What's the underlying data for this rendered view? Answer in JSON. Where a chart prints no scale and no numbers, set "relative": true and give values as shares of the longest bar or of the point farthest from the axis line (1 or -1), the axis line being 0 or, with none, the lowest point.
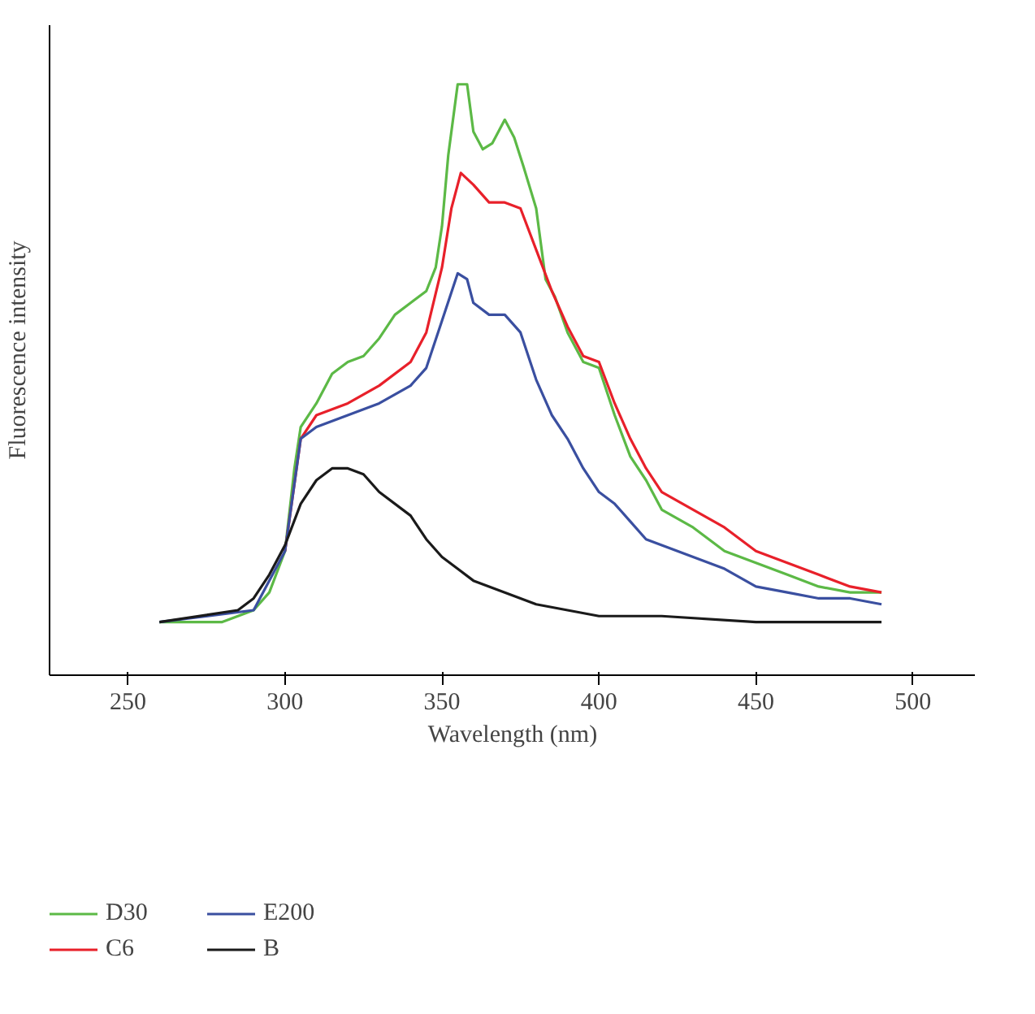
{
  "chart_data": {
    "type": "line",
    "relative": true,
    "xlabel": "Wavelength (nm)",
    "ylabel": "Fluorescence intensity",
    "xlim": [
      225,
      520
    ],
    "xticks": [
      250,
      300,
      350,
      400,
      450,
      500
    ],
    "grid": false,
    "legend": "bottom",
    "series": [
      {
        "name": "D30",
        "color": "#5cb946",
        "x": [
          260,
          280,
          290,
          295,
          300,
          303,
          305,
          310,
          315,
          320,
          325,
          330,
          335,
          340,
          345,
          348,
          350,
          352,
          355,
          358,
          360,
          363,
          366,
          370,
          373,
          376,
          380,
          383,
          386,
          390,
          395,
          400,
          405,
          410,
          415,
          420,
          430,
          440,
          450,
          460,
          470,
          480,
          490
        ],
        "values": [
          0.09,
          0.09,
          0.11,
          0.14,
          0.21,
          0.35,
          0.42,
          0.46,
          0.51,
          0.53,
          0.54,
          0.57,
          0.61,
          0.63,
          0.65,
          0.69,
          0.76,
          0.88,
          1.0,
          1.0,
          0.92,
          0.89,
          0.9,
          0.94,
          0.91,
          0.86,
          0.79,
          0.67,
          0.64,
          0.58,
          0.53,
          0.52,
          0.44,
          0.37,
          0.33,
          0.28,
          0.25,
          0.21,
          0.19,
          0.17,
          0.15,
          0.14,
          0.14
        ]
      },
      {
        "name": "C6",
        "color": "#e8202a",
        "x": [
          300,
          305,
          310,
          320,
          330,
          340,
          345,
          350,
          353,
          356,
          360,
          365,
          370,
          375,
          380,
          385,
          390,
          395,
          400,
          405,
          410,
          415,
          420,
          430,
          440,
          450,
          460,
          470,
          480,
          490
        ],
        "values": [
          0.21,
          0.4,
          0.44,
          0.46,
          0.49,
          0.53,
          0.58,
          0.69,
          0.79,
          0.85,
          0.83,
          0.8,
          0.8,
          0.79,
          0.72,
          0.65,
          0.59,
          0.54,
          0.53,
          0.46,
          0.4,
          0.35,
          0.31,
          0.28,
          0.25,
          0.21,
          0.19,
          0.17,
          0.15,
          0.14
        ]
      },
      {
        "name": "E200",
        "color": "#3a4fa0",
        "x": [
          260,
          290,
          300,
          305,
          310,
          320,
          330,
          340,
          345,
          350,
          355,
          358,
          360,
          365,
          370,
          375,
          380,
          385,
          390,
          395,
          400,
          405,
          410,
          415,
          420,
          430,
          440,
          450,
          460,
          470,
          480,
          490
        ],
        "values": [
          0.09,
          0.11,
          0.21,
          0.4,
          0.42,
          0.44,
          0.46,
          0.49,
          0.52,
          0.6,
          0.68,
          0.67,
          0.63,
          0.61,
          0.61,
          0.58,
          0.5,
          0.44,
          0.4,
          0.35,
          0.31,
          0.29,
          0.26,
          0.23,
          0.22,
          0.2,
          0.18,
          0.15,
          0.14,
          0.13,
          0.13,
          0.12
        ]
      },
      {
        "name": "B",
        "color": "#1a1a1a",
        "x": [
          260,
          285,
          290,
          295,
          300,
          305,
          310,
          315,
          320,
          325,
          330,
          340,
          345,
          350,
          355,
          360,
          370,
          380,
          390,
          400,
          420,
          450,
          490
        ],
        "values": [
          0.09,
          0.11,
          0.13,
          0.17,
          0.22,
          0.29,
          0.33,
          0.35,
          0.35,
          0.34,
          0.31,
          0.27,
          0.23,
          0.2,
          0.18,
          0.16,
          0.14,
          0.12,
          0.11,
          0.1,
          0.1,
          0.09,
          0.09
        ]
      }
    ]
  }
}
